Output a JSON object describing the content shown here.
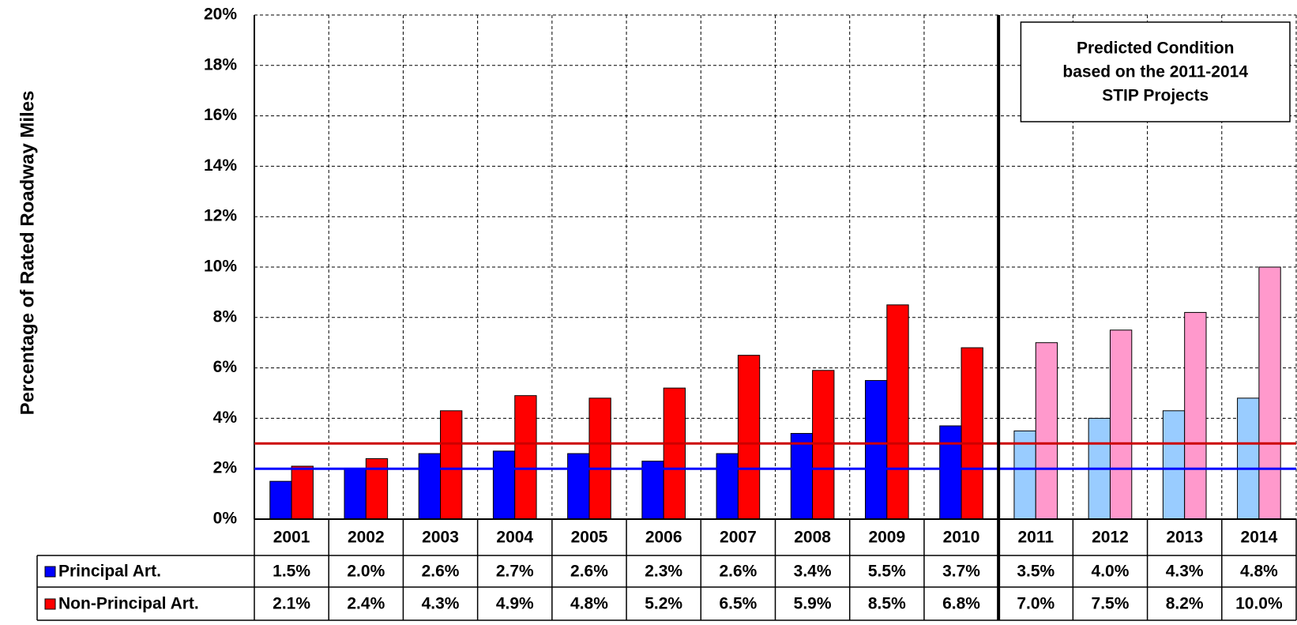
{
  "chart_data": {
    "type": "bar",
    "y_label": "Percentage of Rated Roadway Miles",
    "categories": [
      "2001",
      "2002",
      "2003",
      "2004",
      "2005",
      "2006",
      "2007",
      "2008",
      "2009",
      "2010",
      "2011",
      "2012",
      "2013",
      "2014"
    ],
    "series": [
      {
        "name": "Principal Art.",
        "color": "#0000ff",
        "colors": [
          "#0000ff",
          "#0000ff",
          "#0000ff",
          "#0000ff",
          "#0000ff",
          "#0000ff",
          "#0000ff",
          "#0000ff",
          "#0000ff",
          "#0000ff",
          "#99ccff",
          "#99ccff",
          "#99ccff",
          "#99ccff"
        ],
        "values": [
          1.5,
          2.0,
          2.6,
          2.7,
          2.6,
          2.3,
          2.6,
          3.4,
          5.5,
          3.7,
          3.5,
          4.0,
          4.3,
          4.8
        ],
        "value_labels": [
          "1.5%",
          "2.0%",
          "2.6%",
          "2.7%",
          "2.6%",
          "2.3%",
          "2.6%",
          "3.4%",
          "5.5%",
          "3.7%",
          "3.5%",
          "4.0%",
          "4.3%",
          "4.8%"
        ]
      },
      {
        "name": "Non-Principal Art.",
        "color": "#ff0000",
        "colors": [
          "#ff0000",
          "#ff0000",
          "#ff0000",
          "#ff0000",
          "#ff0000",
          "#ff0000",
          "#ff0000",
          "#ff0000",
          "#ff0000",
          "#ff0000",
          "#ff99cc",
          "#ff99cc",
          "#ff99cc",
          "#ff99cc"
        ],
        "values": [
          2.1,
          2.4,
          4.3,
          4.9,
          4.8,
          5.2,
          6.5,
          5.9,
          8.5,
          6.8,
          7.0,
          7.5,
          8.2,
          10.0
        ],
        "value_labels": [
          "2.1%",
          "2.4%",
          "4.3%",
          "4.9%",
          "4.8%",
          "5.2%",
          "6.5%",
          "5.9%",
          "8.5%",
          "6.8%",
          "7.0%",
          "7.5%",
          "8.2%",
          "10.0%"
        ]
      }
    ],
    "reference_lines": [
      {
        "value": 2,
        "color": "#0000ff"
      },
      {
        "value": 3,
        "color": "#cc0000"
      }
    ],
    "annotation": [
      "Predicted Condition",
      "based on the 2011-2014",
      "STIP Projects"
    ],
    "ylim": [
      0,
      20
    ],
    "yticks": [
      {
        "value": 0,
        "label": "0%"
      },
      {
        "value": 2,
        "label": "2%"
      },
      {
        "value": 4,
        "label": "4%"
      },
      {
        "value": 6,
        "label": "6%"
      },
      {
        "value": 8,
        "label": "8%"
      },
      {
        "value": 10,
        "label": "10%"
      },
      {
        "value": 12,
        "label": "12%"
      },
      {
        "value": 14,
        "label": "14%"
      },
      {
        "value": 16,
        "label": "16%"
      },
      {
        "value": 18,
        "label": "18%"
      },
      {
        "value": 20,
        "label": "20%"
      }
    ],
    "grid": true
  }
}
